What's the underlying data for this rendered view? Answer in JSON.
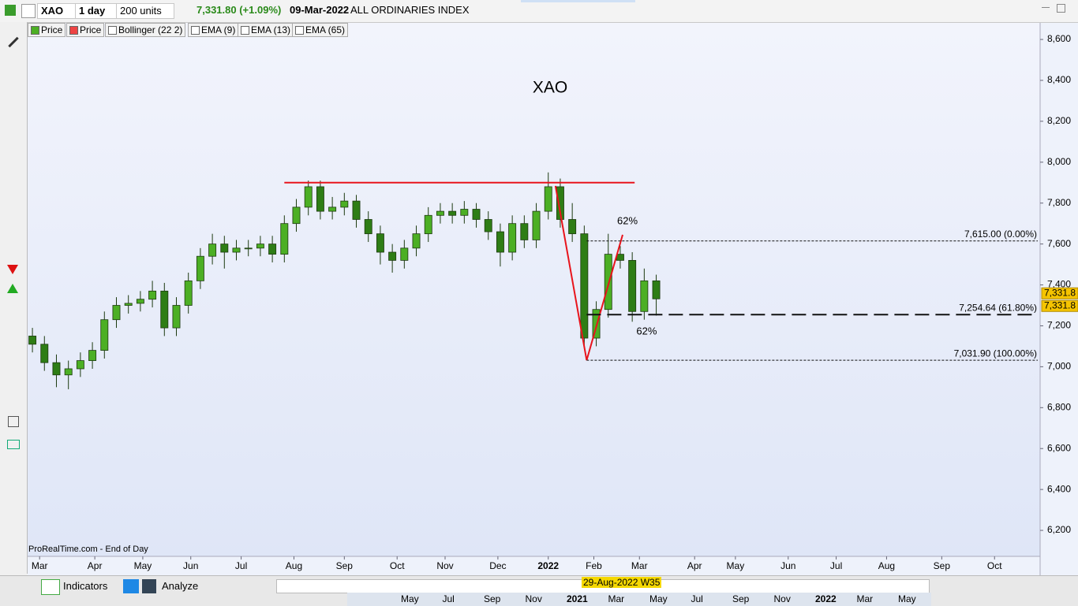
{
  "toolbar": {
    "symbol": "XAO",
    "period": "1 day",
    "units": "200 units",
    "quote": "7,331.80 (+1.09%)",
    "date": "09-Mar-2022",
    "name": "ALL ORDINARIES INDEX"
  },
  "indicators": [
    "Price",
    "Price",
    "Bollinger (22 2)",
    "EMA (9)",
    "EMA (13)",
    "EMA (65)"
  ],
  "chart_data": {
    "type": "candlestick",
    "title": "XAO",
    "source": "ProRealTime.com - End of Day",
    "x": [
      2,
      7,
      12,
      17,
      22,
      27,
      32,
      37,
      42,
      47,
      52,
      57,
      62,
      67,
      72,
      77,
      82,
      87,
      92,
      97,
      102,
      107,
      112,
      117,
      122,
      127,
      132,
      137,
      142,
      147,
      152,
      157,
      162,
      167,
      172,
      177,
      182,
      187,
      192,
      197,
      202,
      207,
      212,
      217,
      222,
      227,
      232,
      237,
      242,
      247,
      252,
      257,
      262
    ],
    "open": [
      7150,
      7110,
      7020,
      6960,
      6990,
      7030,
      7080,
      7230,
      7300,
      7310,
      7330,
      7370,
      7190,
      7300,
      7420,
      7540,
      7600,
      7560,
      7580,
      7580,
      7600,
      7550,
      7700,
      7780,
      7880,
      7760,
      7780,
      7810,
      7720,
      7650,
      7560,
      7520,
      7580,
      7650,
      7740,
      7760,
      7740,
      7770,
      7720,
      7660,
      7560,
      7700,
      7620,
      7760,
      7880,
      7720,
      7650,
      7140,
      7280,
      7550,
      7520,
      7270,
      7420
    ],
    "high": [
      7190,
      7150,
      7060,
      7030,
      7070,
      7120,
      7270,
      7340,
      7350,
      7370,
      7420,
      7410,
      7340,
      7460,
      7580,
      7650,
      7640,
      7620,
      7620,
      7640,
      7640,
      7740,
      7820,
      7910,
      7910,
      7830,
      7850,
      7840,
      7760,
      7690,
      7600,
      7620,
      7690,
      7780,
      7800,
      7800,
      7810,
      7800,
      7760,
      7700,
      7740,
      7740,
      7800,
      7950,
      7920,
      7800,
      7690,
      7320,
      7650,
      7590,
      7560,
      7480,
      7450
    ],
    "low": [
      7070,
      6980,
      6900,
      6890,
      6950,
      6990,
      7040,
      7190,
      7260,
      7270,
      7290,
      7150,
      7150,
      7260,
      7380,
      7500,
      7480,
      7520,
      7540,
      7540,
      7510,
      7510,
      7660,
      7740,
      7720,
      7720,
      7740,
      7680,
      7610,
      7500,
      7460,
      7480,
      7540,
      7610,
      7700,
      7700,
      7700,
      7680,
      7620,
      7490,
      7520,
      7580,
      7580,
      7720,
      7680,
      7610,
      7100,
      7100,
      7240,
      7480,
      7220,
      7230,
      7250
    ],
    "close": [
      7110,
      7020,
      6960,
      6990,
      7030,
      7080,
      7230,
      7300,
      7310,
      7330,
      7370,
      7190,
      7300,
      7420,
      7540,
      7600,
      7560,
      7580,
      7580,
      7600,
      7550,
      7700,
      7780,
      7880,
      7760,
      7780,
      7810,
      7720,
      7650,
      7560,
      7520,
      7580,
      7650,
      7740,
      7760,
      7740,
      7770,
      7720,
      7660,
      7560,
      7700,
      7620,
      7760,
      7880,
      7720,
      7650,
      7140,
      7280,
      7550,
      7520,
      7270,
      7420,
      7331.8
    ],
    "up_color": "#4caf24",
    "down_color": "#2e7d15",
    "xlim": [
      0,
      422
    ],
    "xticks": [
      {
        "value": 5,
        "label": "Mar"
      },
      {
        "value": 28,
        "label": "Apr"
      },
      {
        "value": 48,
        "label": "May"
      },
      {
        "value": 68,
        "label": "Jun"
      },
      {
        "value": 89,
        "label": "Jul"
      },
      {
        "value": 111,
        "label": "Aug"
      },
      {
        "value": 132,
        "label": "Sep"
      },
      {
        "value": 154,
        "label": "Oct"
      },
      {
        "value": 174,
        "label": "Nov"
      },
      {
        "value": 196,
        "label": "Dec"
      },
      {
        "value": 217,
        "label": "2022"
      },
      {
        "value": 236,
        "label": "Feb"
      },
      {
        "value": 255,
        "label": "Mar"
      },
      {
        "value": 278,
        "label": "Apr"
      },
      {
        "value": 295,
        "label": "May"
      },
      {
        "value": 317,
        "label": "Jun"
      },
      {
        "value": 337,
        "label": "Jul"
      },
      {
        "value": 358,
        "label": "Aug"
      },
      {
        "value": 381,
        "label": "Sep"
      },
      {
        "value": 403,
        "label": "Oct"
      }
    ],
    "ylim": [
      6073,
      8685
    ],
    "yticks": [
      {
        "value": 6200,
        "label": "6,200"
      },
      {
        "value": 6400,
        "label": "6,400"
      },
      {
        "value": 6600,
        "label": "6,600"
      },
      {
        "value": 6800,
        "label": "6,800"
      },
      {
        "value": 7000,
        "label": "7,000"
      },
      {
        "value": 7200,
        "label": "7,200"
      },
      {
        "value": 7400,
        "label": "7,400"
      },
      {
        "value": 7600,
        "label": "7,600"
      },
      {
        "value": 7800,
        "label": "7,800"
      },
      {
        "value": 8000,
        "label": "8,000"
      },
      {
        "value": 8200,
        "label": "8,200"
      },
      {
        "value": 8400,
        "label": "8,400"
      },
      {
        "value": 8600,
        "label": "8,600"
      }
    ],
    "grid": false,
    "price_tags": [
      {
        "value": 7331.8,
        "label": "7,331.8"
      },
      {
        "value": 7331.8,
        "label": "7,331.8"
      }
    ],
    "resistance": {
      "value": 7900,
      "x": [
        107,
        253
      ],
      "color": "#e8141c"
    },
    "zigzag": {
      "x": [
        220,
        233,
        248
      ],
      "y": [
        7884,
        7031.9,
        7645
      ],
      "color": "#e8141c"
    },
    "fib_levels": [
      {
        "value": 7615,
        "label": "7,615.00 (0.00%)"
      },
      {
        "value": 7254.64,
        "label": "7,254.64 (61.80%)"
      },
      {
        "value": 7031.9,
        "label": "7,031.90 (100.00%)"
      }
    ],
    "annotations": [
      {
        "text": "62%",
        "x": 250,
        "y": 7710
      },
      {
        "text": "62%",
        "x": 258,
        "y": 7170
      }
    ]
  },
  "footer": {
    "buttons": [
      "Indicators",
      "Analyze"
    ],
    "overview_ticks": [
      "May",
      "Jul",
      "Sep",
      "Nov",
      "2021",
      "Mar",
      "May",
      "Jul",
      "Sep",
      "Nov",
      "2022",
      "Mar",
      "May"
    ],
    "cursor_date": "29-Aug-2022 W35"
  }
}
